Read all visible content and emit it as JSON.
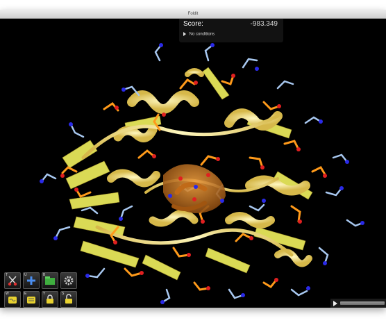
{
  "window": {
    "title": "Foldit"
  },
  "score": {
    "label": "Score:",
    "value": "-983.349"
  },
  "conditions": {
    "label": "No conditions"
  },
  "toolbar": {
    "buttons": [
      {
        "key": "T",
        "icon": "scissors-icon"
      },
      {
        "key": "U",
        "icon": "plus-icon"
      },
      {
        "key": "B",
        "icon": "band-icon"
      },
      {
        "key": "",
        "icon": "gear-icon"
      },
      {
        "key": "W",
        "icon": "wiggle-icon"
      },
      {
        "key": "E",
        "icon": "shake-icon"
      },
      {
        "key": "Y",
        "icon": "freeze-icon"
      },
      {
        "key": "S",
        "icon": "unfreeze-icon"
      }
    ]
  },
  "colors": {
    "backbone": "#f2e27a",
    "sheet": "#e8ea5a",
    "sidechain_orange": "#ff9a1a",
    "sidechain_blue": "#a8c8f0",
    "oxygen": "#e02020",
    "nitrogen": "#2a2ae8"
  }
}
